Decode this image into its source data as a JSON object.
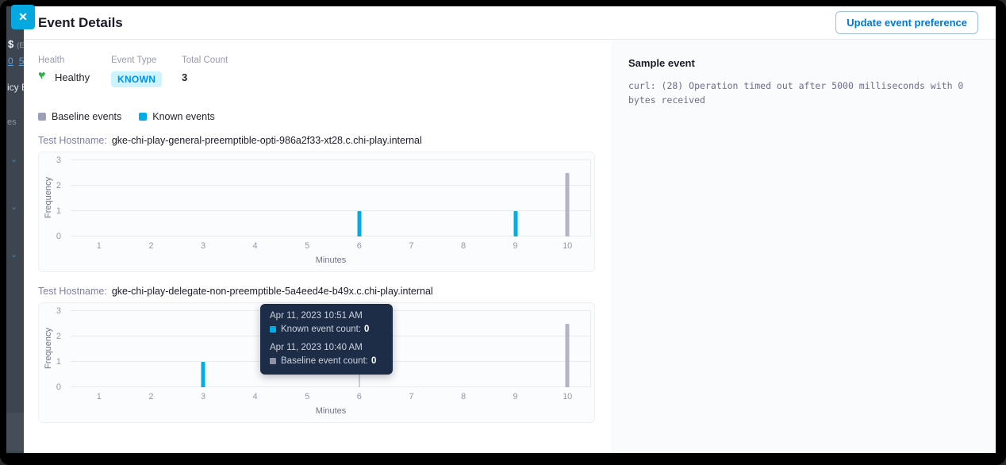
{
  "header": {
    "title": "Event Details",
    "close_icon": "✕",
    "update_button_label": "Update event preference"
  },
  "background_fragments": {
    "dollar": "$",
    "paren": "(Ex",
    "link_a": "0",
    "link_b": "5",
    "policy": "icy E",
    "es": "es",
    "chevron": "⌄"
  },
  "stats": {
    "health_label": "Health",
    "health_value": "Healthy",
    "health_check": "✓",
    "heart_glyph": "♥",
    "event_type_label": "Event Type",
    "event_type_value": "KNOWN",
    "total_count_label": "Total Count",
    "total_count_value": "3"
  },
  "legend": {
    "baseline_label": "Baseline events",
    "known_label": "Known events"
  },
  "colors": {
    "known": "#00ade4",
    "baseline": "#b3b4c8",
    "legend_baseline": "#9d9fb8",
    "baseline_tooltip": "#8e93a4",
    "accent_blue": "#0278d5",
    "close_button": "#06a8e2",
    "health_green": "#2bb24c",
    "badge_bg": "#cdf4fe",
    "badge_text": "#0092e4",
    "tooltip_bg": "#1e2d47"
  },
  "chart_data": [
    {
      "type": "bar",
      "hostname_label": "Test Hostname:",
      "hostname": "gke-chi-play-general-preemptible-opti-986a2f33-xt28.c.chi-play.internal",
      "xlabel": "Minutes",
      "ylabel": "Frequency",
      "x_ticks": [
        1,
        2,
        3,
        4,
        5,
        6,
        7,
        8,
        9,
        10
      ],
      "y_ticks": [
        0,
        1,
        2,
        3
      ],
      "xlim": [
        0,
        10
      ],
      "ylim": [
        0,
        3
      ],
      "series": [
        {
          "name": "Known events",
          "color_key": "known",
          "points": [
            {
              "x": 6,
              "y": 1
            },
            {
              "x": 9,
              "y": 1
            }
          ]
        },
        {
          "name": "Baseline events",
          "color_key": "baseline",
          "points": [
            {
              "x": 10,
              "y": 2.5
            }
          ]
        }
      ],
      "crosshair_x": null
    },
    {
      "type": "bar",
      "hostname_label": "Test Hostname:",
      "hostname": "gke-chi-play-delegate-non-preemptible-5a4eed4e-b49x.c.chi-play.internal",
      "xlabel": "Minutes",
      "ylabel": "Frequency",
      "x_ticks": [
        1,
        2,
        3,
        4,
        5,
        6,
        7,
        8,
        9,
        10
      ],
      "y_ticks": [
        0,
        1,
        2,
        3
      ],
      "xlim": [
        0,
        10
      ],
      "ylim": [
        0,
        3
      ],
      "series": [
        {
          "name": "Known events",
          "color_key": "known",
          "points": [
            {
              "x": 3,
              "y": 1
            }
          ]
        },
        {
          "name": "Baseline events",
          "color_key": "baseline",
          "points": [
            {
              "x": 10,
              "y": 2.5
            }
          ]
        }
      ],
      "crosshair_x": 6
    }
  ],
  "tooltip": {
    "entries": [
      {
        "time": "Apr 11, 2023 10:51 AM",
        "label": "Known event count:",
        "value": "0",
        "color_key": "known"
      },
      {
        "time": "Apr 11, 2023 10:40 AM",
        "label": "Baseline event count:",
        "value": "0",
        "color_key": "baseline_tooltip"
      }
    ]
  },
  "sample_event": {
    "title": "Sample event",
    "body": "curl: (28) Operation timed out after 5000 milliseconds with 0 bytes received"
  }
}
